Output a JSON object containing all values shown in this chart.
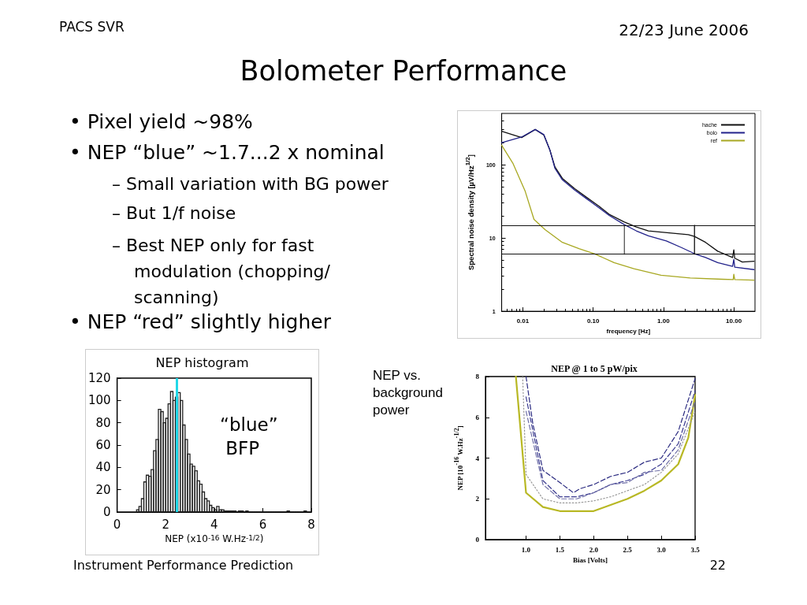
{
  "chart_data": [
    {
      "type": "other",
      "title": "Bolometer Performance",
      "annotations": [
        "PACS SVR",
        "22/23 June 2006",
        "• Pixel yield ~98%",
        "• NEP “blue” ~1.7...2 x nominal",
        "– Small variation with BG power",
        "– But 1/f noise",
        "– Best NEP only for fast modulation (chopping/ scanning)",
        "• NEP “red” slightly higher",
        "Instrument Performance Prediction",
        "22"
      ]
    },
    {
      "type": "line",
      "xlabel": "frequency [Hz]",
      "ylabel": "Spectral noise density [µV/Hz$^{1/2}$]",
      "log": "xy",
      "xlim": [
        0.005,
        20
      ],
      "xticks": [
        0.01,
        {
          "value": 0.1,
          "label": "0.10"
        },
        {
          "value": 1,
          "label": "1.00"
        },
        {
          "value": 10,
          "label": "10.00"
        }
      ],
      "ylim": [
        1,
        500
      ],
      "yticks": [
        1,
        10,
        100
      ],
      "legend": "top right",
      "series": [
        {
          "name": "hache",
          "color": "#111111",
          "x": [
            0.005,
            0.0096,
            0.015,
            0.0199,
            0.0243,
            0.0286,
            0.0365,
            0.0546,
            0.0816,
            0.122,
            0.169,
            0.274,
            0.41,
            0.61,
            1.38,
            2.25,
            2.76,
            3.97,
            5.9,
            9.6,
            10,
            10.3,
            13.2,
            19.4
          ],
          "values": [
            286,
            234,
            302,
            253,
            157,
            93,
            65,
            47,
            35.5,
            27,
            21,
            16.6,
            14.1,
            12.5,
            11.6,
            11.1,
            10.5,
            8.7,
            6.6,
            5.4,
            6.9,
            5.3,
            4.7,
            4.8
          ]
        },
        {
          "name": "bolo",
          "color": "#22228a",
          "x": [
            0.005,
            0.0096,
            0.015,
            0.0199,
            0.0243,
            0.0286,
            0.0365,
            0.0546,
            0.0816,
            0.122,
            0.169,
            0.274,
            0.41,
            0.61,
            1.1,
            1.8,
            2.76,
            3.97,
            5.9,
            9.6,
            10,
            10.3,
            19.4
          ],
          "values": [
            199,
            238,
            302,
            257,
            157,
            89,
            62,
            45,
            34,
            25.7,
            20.3,
            15.3,
            12.5,
            10.7,
            9.1,
            7.4,
            6.1,
            5.4,
            4.6,
            4.1,
            5.1,
            4.0,
            3.7
          ]
        },
        {
          "name": "ref",
          "color": "#a8a822",
          "x": [
            0.005,
            0.0072,
            0.0108,
            0.0144,
            0.0207,
            0.0365,
            0.064,
            0.104,
            0.198,
            0.38,
            0.92,
            2.4,
            6.9,
            9.8,
            10,
            10.3,
            19.4
          ],
          "values": [
            184,
            105,
            43.3,
            17.9,
            13,
            8.7,
            7.1,
            6.1,
            4.6,
            3.8,
            3.1,
            2.84,
            2.73,
            2.7,
            3.2,
            2.7,
            2.66
          ]
        },
        {
          "color": "#555555",
          "x": [
            0.278,
            0.278
          ],
          "values": [
            6.0,
            14.9
          ]
        },
        {
          "color": "#111111",
          "x": [
            2.76,
            2.76
          ],
          "values": [
            6.0,
            14.9
          ]
        }
      ],
      "ref_lines": [
        {
          "axis": "y",
          "value": 14.9,
          "color": "#111111"
        },
        {
          "axis": "y",
          "value": 6.0,
          "color": "#111111"
        }
      ]
    },
    {
      "type": "histogram",
      "title": "NEP histogram",
      "xlabel": "NEP (x10$^{-16}$ W.Hz$^{-1/2}$)",
      "color": "#222222",
      "xlim": [
        0,
        8
      ],
      "xticks": [
        0,
        2,
        4,
        6,
        8
      ],
      "ylim": [
        0,
        120
      ],
      "yticks": [
        0,
        20,
        40,
        60,
        80,
        100,
        120
      ],
      "bins": [
        0.8,
        0.9,
        1.0,
        1.1,
        1.2,
        1.3,
        1.4,
        1.5,
        1.6,
        1.7,
        1.8,
        1.9,
        2.0,
        2.1,
        2.2,
        2.3,
        2.4,
        2.5,
        2.6,
        2.7,
        2.8,
        2.9,
        3.0,
        3.1,
        3.2,
        3.3,
        3.4,
        3.5,
        3.6,
        3.7,
        3.8,
        3.9,
        4.0,
        4.1,
        4.2,
        4.3,
        4.4,
        4.5,
        4.6,
        4.7,
        4.8,
        4.9,
        5.0,
        5.1,
        5.2,
        5.3,
        5.4,
        5.5,
        5.6,
        5.7,
        5.8,
        5.9,
        6.0,
        6.1,
        6.2,
        6.3,
        6.4,
        6.5,
        6.6,
        6.7,
        6.8,
        6.9,
        7.0,
        7.1,
        7.2,
        7.3,
        7.4,
        7.5,
        7.6,
        7.7,
        7.8,
        7.9,
        8.0
      ],
      "values": [
        2,
        5,
        12,
        27,
        33,
        32,
        38,
        55,
        65,
        92,
        90,
        80,
        84,
        97,
        108,
        100,
        103,
        107,
        100,
        78,
        65,
        52,
        43,
        41,
        37,
        28,
        25,
        18,
        12,
        10,
        6,
        4,
        2,
        5,
        2,
        2,
        1,
        1,
        1,
        1,
        1,
        0,
        1,
        1,
        0,
        1,
        0,
        0,
        0,
        0,
        0,
        0,
        0,
        0,
        0,
        0,
        0,
        0,
        0,
        0,
        0,
        0,
        1,
        0,
        0,
        0,
        0,
        0,
        0,
        1,
        0,
        0
      ],
      "ref_lines": [
        {
          "axis": "x",
          "value": 2.45,
          "color": "#22d8e8"
        }
      ],
      "annotations": [
        "“blue” BFP"
      ]
    },
    {
      "type": "line",
      "title": "NEP @ 1 to 5 pW/pix",
      "xlabel": "Bias [Volts]",
      "ylabel": "NEP [10$^{-16}$ W.Hz$^{-1/2}$]",
      "xlim": [
        0.4,
        3.5
      ],
      "xticks": [
        {
          "value": 1,
          "label": "1.0"
        },
        1.5,
        {
          "value": 2,
          "label": "2.0"
        },
        2.5,
        {
          "value": 3,
          "label": "3.0"
        },
        3.5
      ],
      "ylim": [
        0,
        8
      ],
      "yticks": [
        0,
        2,
        4,
        6,
        8
      ],
      "series": [
        {
          "color": "#b8b824",
          "line_style": "solid",
          "x": [
            0.85,
            1.0,
            1.25,
            1.5,
            1.75,
            2.0,
            2.25,
            2.5,
            2.75,
            3.0,
            3.25,
            3.4,
            3.5
          ],
          "values": [
            8,
            2.3,
            1.6,
            1.4,
            1.4,
            1.4,
            1.7,
            2.0,
            2.4,
            2.9,
            3.7,
            5.0,
            7.1
          ]
        },
        {
          "color": "#999999",
          "line_style": "dotted",
          "x": [
            0.95,
            1.0,
            1.25,
            1.5,
            1.75,
            2.0,
            2.25,
            2.5,
            2.75,
            3.0,
            3.25,
            3.5
          ],
          "values": [
            8,
            3.2,
            2.0,
            1.8,
            1.8,
            1.9,
            2.1,
            2.4,
            2.7,
            3.3,
            4.2,
            6.3
          ]
        },
        {
          "color": "#2a2a80",
          "line_style": "dashed",
          "x": [
            1.0,
            1.1,
            1.25,
            1.5,
            1.7,
            1.8,
            2.0,
            2.25,
            2.5,
            2.75,
            3.0,
            3.25,
            3.5
          ],
          "values": [
            8,
            5.7,
            3.4,
            2.8,
            2.3,
            2.5,
            2.7,
            3.1,
            3.3,
            3.8,
            4.0,
            5.3,
            7.9
          ]
        },
        {
          "color": "#3a3a90",
          "line_style": "dashed",
          "x": [
            1.0,
            1.25,
            1.5,
            1.75,
            2.0,
            2.25,
            2.5,
            2.75,
            3.0,
            3.25,
            3.5
          ],
          "values": [
            7.0,
            2.9,
            2.1,
            2.1,
            2.3,
            2.7,
            2.9,
            3.2,
            3.7,
            4.7,
            7.3
          ]
        },
        {
          "color": "#7070a8",
          "line_style": "dashed",
          "x": [
            1.0,
            1.25,
            1.5,
            1.75,
            2.0,
            2.25,
            2.5,
            2.75,
            3.0,
            3.25,
            3.5
          ],
          "values": [
            6.3,
            2.7,
            2.0,
            2.0,
            2.3,
            2.7,
            2.8,
            3.3,
            3.4,
            4.4,
            6.8
          ]
        }
      ],
      "annotations": [
        "NEP vs. background power"
      ]
    }
  ]
}
